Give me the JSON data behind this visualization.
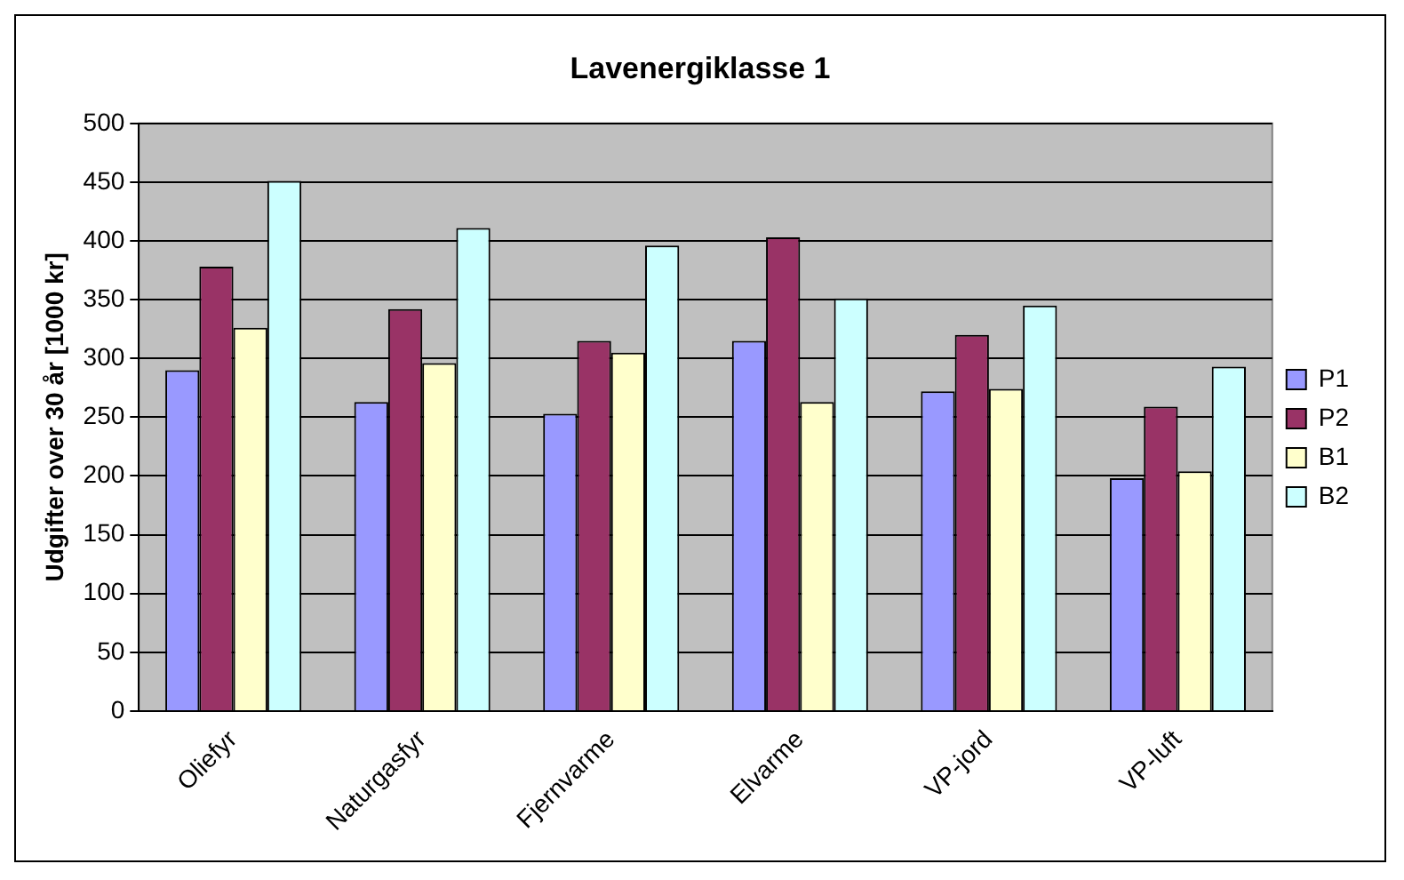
{
  "chart_data": {
    "type": "bar",
    "title": "Lavenergiklasse 1",
    "ylabel": "Udgifter over 30 år [1000 kr]",
    "categories": [
      "Oliefyr",
      "Naturgasfyr",
      "Fjernvarme",
      "Elvarme",
      "VP-jord",
      "VP-luft"
    ],
    "series": [
      {
        "name": "P1",
        "color": "#9999ff",
        "values": [
          290,
          263,
          253,
          315,
          272,
          198
        ]
      },
      {
        "name": "P2",
        "color": "#993366",
        "values": [
          378,
          342,
          315,
          403,
          320,
          259
        ]
      },
      {
        "name": "B1",
        "color": "#ffffcc",
        "values": [
          326,
          296,
          305,
          263,
          274,
          204
        ]
      },
      {
        "name": "B2",
        "color": "#ccffff",
        "values": [
          451,
          411,
          396,
          351,
          345,
          293
        ]
      }
    ],
    "ylim": [
      0,
      500
    ],
    "yticks": [
      0,
      50,
      100,
      150,
      200,
      250,
      300,
      350,
      400,
      450,
      500
    ],
    "grid": "y",
    "legend": "right"
  }
}
